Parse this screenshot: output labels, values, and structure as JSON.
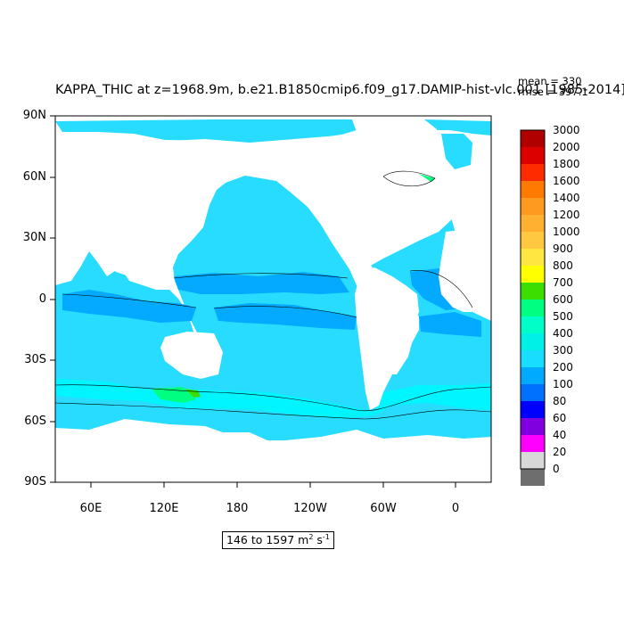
{
  "title": "KAPPA_THIC at z=1968.9m, b.e21.B1850cmip6.f09_g17.DAMIP-hist-vlc.001 [1985-2014]",
  "stats": {
    "mean": "mean = 330",
    "rmse": "rmse = 397.1"
  },
  "range": {
    "text": "146 to 1597 m",
    "exp1": "2",
    "mid": " s",
    "exp2": "-1"
  },
  "axes": {
    "lat_labels": [
      "90N",
      "60N",
      "30N",
      "0",
      "30S",
      "60S",
      "90S"
    ],
    "lon_labels": [
      "60E",
      "120E",
      "180",
      "120W",
      "60W",
      "0"
    ]
  },
  "colorbar": {
    "levels": [
      "3000",
      "2000",
      "1800",
      "1600",
      "1400",
      "1200",
      "1000",
      "900",
      "800",
      "700",
      "600",
      "500",
      "400",
      "300",
      "200",
      "100",
      "80",
      "60",
      "40",
      "20",
      "0"
    ],
    "colors": [
      "#b00000",
      "#dd0000",
      "#ff2b00",
      "#ff7a00",
      "#ff9a20",
      "#ffb030",
      "#ffc840",
      "#ffe640",
      "#ffff00",
      "#3cdd00",
      "#00ff80",
      "#00ffc8",
      "#00f0e8",
      "#18ddff",
      "#00aaff",
      "#0070ff",
      "#0000ff",
      "#8000e0",
      "#ff00ff",
      "#d8d8d8",
      "#6e6e6e"
    ]
  },
  "colors": {
    "ocean_main": "#28dcff",
    "ocean_dark": "#04aaff",
    "ocean_light": "#00f5ff",
    "land": "#ffffff"
  }
}
